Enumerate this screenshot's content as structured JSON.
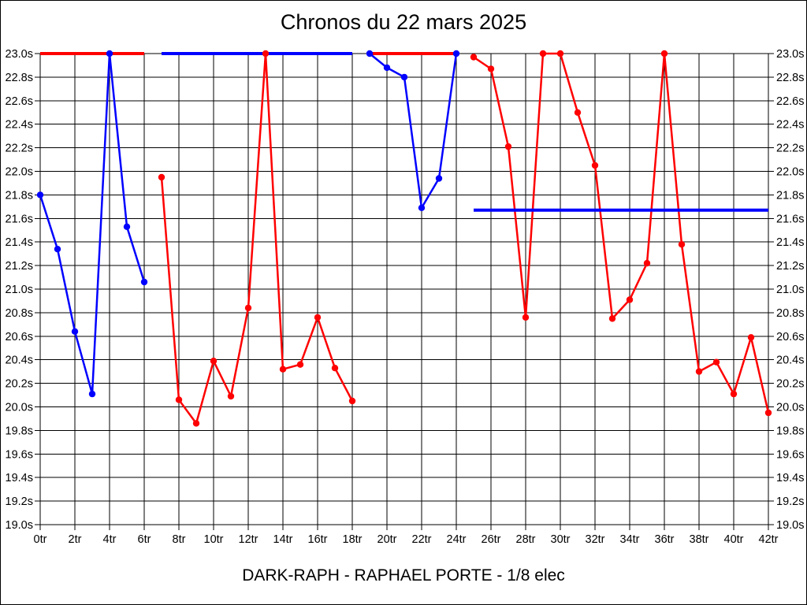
{
  "title": "Chronos du 22 mars 2025",
  "subtitle": "DARK-RAPH - RAPHAEL PORTE - 1/8 elec",
  "chart_data": {
    "type": "line",
    "title": "Chronos du 22 mars 2025",
    "subtitle": "DARK-RAPH - RAPHAEL PORTE - 1/8 elec",
    "x_unit": "tr",
    "y_unit": "s",
    "xlim": [
      0,
      42
    ],
    "ylim": [
      19.0,
      23.0
    ],
    "x_tick_step": 2,
    "y_tick_step": 0.2,
    "grid": true,
    "legend": "none",
    "x_ticks": [
      "0tr",
      "2tr",
      "4tr",
      "6tr",
      "8tr",
      "10tr",
      "12tr",
      "14tr",
      "16tr",
      "18tr",
      "20tr",
      "22tr",
      "24tr",
      "26tr",
      "28tr",
      "30tr",
      "32tr",
      "34tr",
      "36tr",
      "38tr",
      "40tr",
      "42tr"
    ],
    "y_ticks": [
      "23.0s",
      "22.8s",
      "22.6s",
      "22.4s",
      "22.2s",
      "22.0s",
      "21.8s",
      "21.6s",
      "21.4s",
      "21.2s",
      "21.0s",
      "20.8s",
      "20.6s",
      "20.4s",
      "20.2s",
      "20.0s",
      "19.8s",
      "19.6s",
      "19.4s",
      "19.2s",
      "19.0s"
    ],
    "colors": {
      "blue": "#0000ff",
      "red": "#ff0000",
      "grid": "#000000",
      "background": "#ffffff"
    },
    "series": [
      {
        "name": "red-flat-23s-laps-0-6",
        "color": "#ff0000",
        "markers": false,
        "width": 4,
        "points": [
          [
            0,
            23.0
          ],
          [
            6,
            23.0
          ]
        ]
      },
      {
        "name": "blue-flat-23s-laps-7-18",
        "color": "#0000ff",
        "markers": false,
        "width": 4,
        "points": [
          [
            7,
            23.0
          ],
          [
            18,
            23.0
          ]
        ]
      },
      {
        "name": "red-flat-23s-laps-19-24",
        "color": "#ff0000",
        "markers": false,
        "width": 4,
        "points": [
          [
            19,
            23.0
          ],
          [
            24,
            23.0
          ]
        ]
      },
      {
        "name": "red-laps-7-18",
        "color": "#ff0000",
        "markers": true,
        "width": 2.5,
        "points": [
          [
            7,
            21.95
          ],
          [
            8,
            20.06
          ],
          [
            9,
            19.86
          ],
          [
            10,
            20.39
          ],
          [
            11,
            20.09
          ],
          [
            12,
            20.84
          ],
          [
            13,
            23.0
          ],
          [
            14,
            20.32
          ],
          [
            15,
            20.36
          ],
          [
            16,
            20.76
          ],
          [
            17,
            20.33
          ],
          [
            18,
            20.05
          ]
        ]
      },
      {
        "name": "red-laps-25-42",
        "color": "#ff0000",
        "markers": true,
        "width": 2.5,
        "points": [
          [
            25,
            22.97
          ],
          [
            26,
            22.87
          ],
          [
            27,
            22.21
          ],
          [
            28,
            20.76
          ],
          [
            29,
            23.0
          ],
          [
            30,
            23.0
          ],
          [
            31,
            22.5
          ],
          [
            32,
            22.05
          ],
          [
            33,
            20.75
          ],
          [
            34,
            20.91
          ],
          [
            35,
            21.22
          ],
          [
            36,
            23.0
          ],
          [
            37,
            21.38
          ],
          [
            38,
            20.3
          ],
          [
            39,
            20.38
          ],
          [
            40,
            20.11
          ],
          [
            41,
            20.59
          ],
          [
            42,
            19.95
          ]
        ]
      },
      {
        "name": "blue-laps-0-6",
        "color": "#0000ff",
        "markers": true,
        "width": 2.5,
        "points": [
          [
            0,
            21.8
          ],
          [
            1,
            21.34
          ],
          [
            2,
            20.64
          ],
          [
            3,
            20.11
          ],
          [
            4,
            23.0
          ],
          [
            5,
            21.53
          ],
          [
            6,
            21.06
          ]
        ]
      },
      {
        "name": "blue-laps-19-24",
        "color": "#0000ff",
        "markers": true,
        "width": 2.5,
        "points": [
          [
            19,
            23.0
          ],
          [
            20,
            22.88
          ],
          [
            21,
            22.8
          ],
          [
            22,
            21.69
          ],
          [
            23,
            21.94
          ],
          [
            24,
            23.0
          ]
        ]
      },
      {
        "name": "blue-flat-21.67s-laps-25-42",
        "color": "#0000ff",
        "markers": false,
        "width": 4,
        "points": [
          [
            25,
            21.67
          ],
          [
            42,
            21.67
          ]
        ]
      }
    ]
  }
}
